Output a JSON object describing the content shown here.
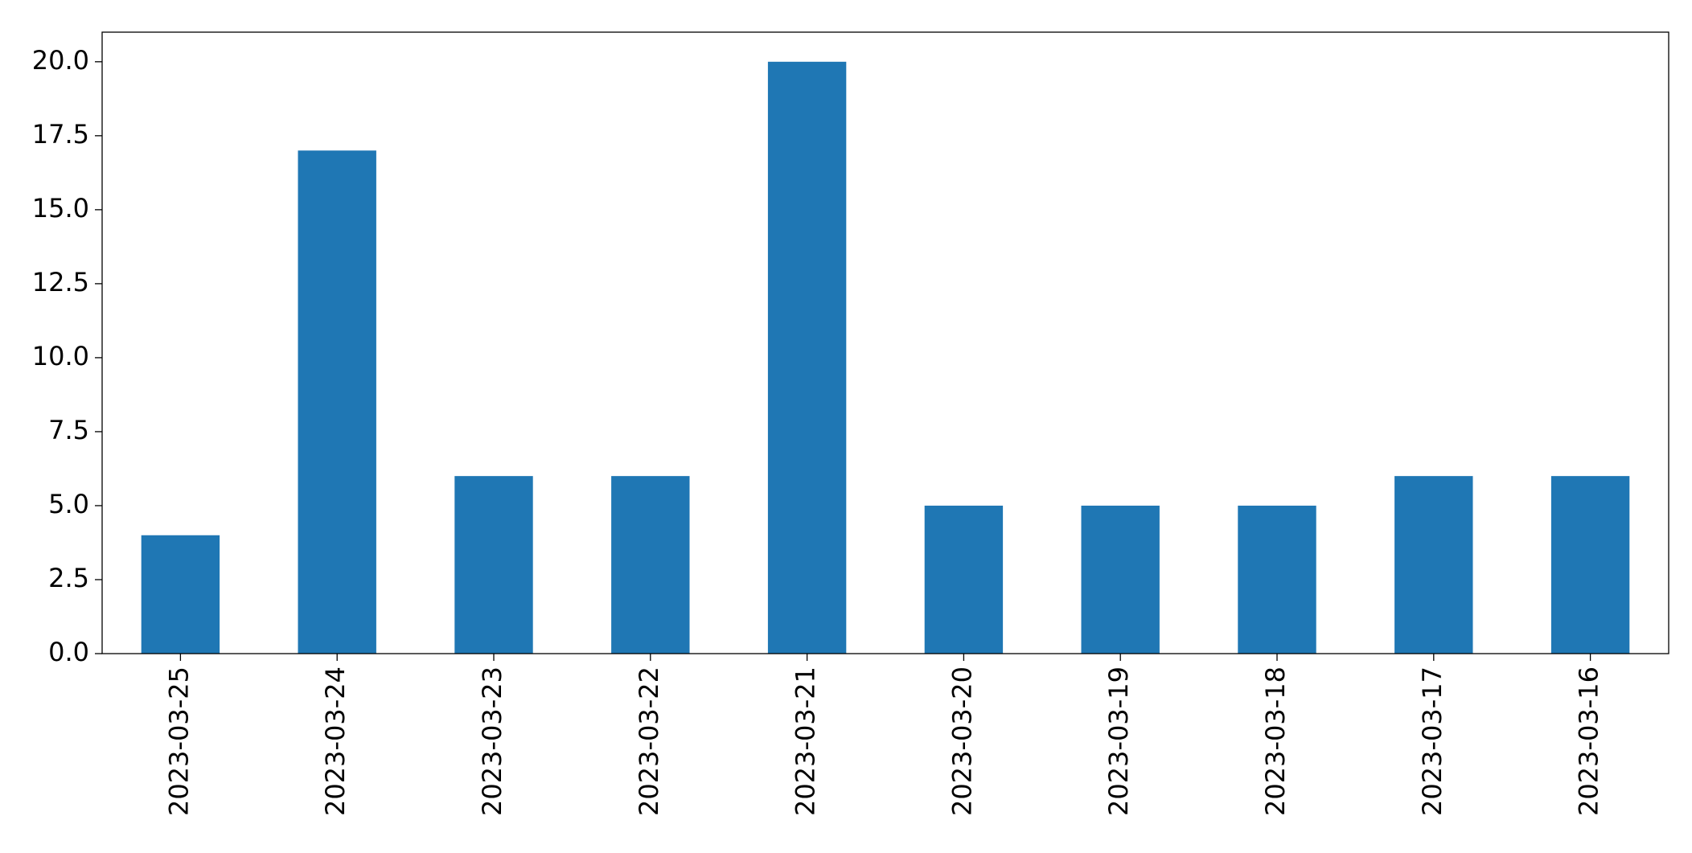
{
  "chart_data": {
    "type": "bar",
    "categories": [
      "2023-03-25",
      "2023-03-24",
      "2023-03-23",
      "2023-03-22",
      "2023-03-21",
      "2023-03-20",
      "2023-03-19",
      "2023-03-18",
      "2023-03-17",
      "2023-03-16"
    ],
    "values": [
      4,
      17,
      6,
      6,
      20,
      5,
      5,
      5,
      6,
      6
    ],
    "color": "#1f77b4",
    "ylim": [
      0,
      21
    ],
    "yticks": [
      {
        "value": 0,
        "label": "0.0"
      },
      {
        "value": 2.5,
        "label": "2.5"
      },
      {
        "value": 5,
        "label": "5.0"
      },
      {
        "value": 7.5,
        "label": "7.5"
      },
      {
        "value": 10,
        "label": "10.0"
      },
      {
        "value": 12.5,
        "label": "12.5"
      },
      {
        "value": 15,
        "label": "15.0"
      },
      {
        "value": 17.5,
        "label": "17.5"
      },
      {
        "value": 20,
        "label": "20.0"
      }
    ],
    "grid": false
  }
}
